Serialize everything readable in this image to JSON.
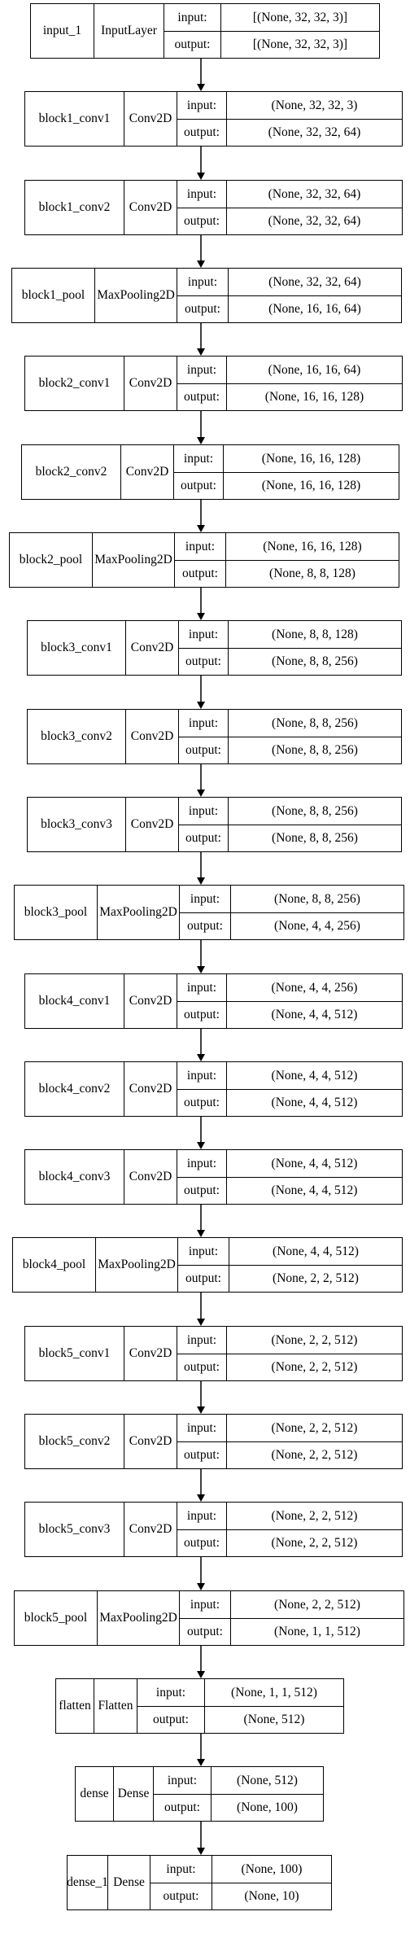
{
  "layers": [
    {
      "name": "input_1",
      "type": "InputLayer",
      "input_label": "input:",
      "output_label": "output:",
      "input": "[(None, 32, 32, 3)]",
      "output": "[(None, 32, 32, 3)]"
    },
    {
      "name": "block1_conv1",
      "type": "Conv2D",
      "input_label": "input:",
      "output_label": "output:",
      "input": "(None, 32, 32, 3)",
      "output": "(None, 32, 32, 64)"
    },
    {
      "name": "block1_conv2",
      "type": "Conv2D",
      "input_label": "input:",
      "output_label": "output:",
      "input": "(None, 32, 32, 64)",
      "output": "(None, 32, 32, 64)"
    },
    {
      "name": "block1_pool",
      "type": "MaxPooling2D",
      "input_label": "input:",
      "output_label": "output:",
      "input": "(None, 32, 32, 64)",
      "output": "(None, 16, 16, 64)"
    },
    {
      "name": "block2_conv1",
      "type": "Conv2D",
      "input_label": "input:",
      "output_label": "output:",
      "input": "(None, 16, 16, 64)",
      "output": "(None, 16, 16, 128)"
    },
    {
      "name": "block2_conv2",
      "type": "Conv2D",
      "input_label": "input:",
      "output_label": "output:",
      "input": "(None, 16, 16, 128)",
      "output": "(None, 16, 16, 128)"
    },
    {
      "name": "block2_pool",
      "type": "MaxPooling2D",
      "input_label": "input:",
      "output_label": "output:",
      "input": "(None, 16, 16, 128)",
      "output": "(None, 8, 8, 128)"
    },
    {
      "name": "block3_conv1",
      "type": "Conv2D",
      "input_label": "input:",
      "output_label": "output:",
      "input": "(None, 8, 8, 128)",
      "output": "(None, 8, 8, 256)"
    },
    {
      "name": "block3_conv2",
      "type": "Conv2D",
      "input_label": "input:",
      "output_label": "output:",
      "input": "(None, 8, 8, 256)",
      "output": "(None, 8, 8, 256)"
    },
    {
      "name": "block3_conv3",
      "type": "Conv2D",
      "input_label": "input:",
      "output_label": "output:",
      "input": "(None, 8, 8, 256)",
      "output": "(None, 8, 8, 256)"
    },
    {
      "name": "block3_pool",
      "type": "MaxPooling2D",
      "input_label": "input:",
      "output_label": "output:",
      "input": "(None, 8, 8, 256)",
      "output": "(None, 4, 4, 256)"
    },
    {
      "name": "block4_conv1",
      "type": "Conv2D",
      "input_label": "input:",
      "output_label": "output:",
      "input": "(None, 4, 4, 256)",
      "output": "(None, 4, 4, 512)"
    },
    {
      "name": "block4_conv2",
      "type": "Conv2D",
      "input_label": "input:",
      "output_label": "output:",
      "input": "(None, 4, 4, 512)",
      "output": "(None, 4, 4, 512)"
    },
    {
      "name": "block4_conv3",
      "type": "Conv2D",
      "input_label": "input:",
      "output_label": "output:",
      "input": "(None, 4, 4, 512)",
      "output": "(None, 4, 4, 512)"
    },
    {
      "name": "block4_pool",
      "type": "MaxPooling2D",
      "input_label": "input:",
      "output_label": "output:",
      "input": "(None, 4, 4, 512)",
      "output": "(None, 2, 2, 512)"
    },
    {
      "name": "block5_conv1",
      "type": "Conv2D",
      "input_label": "input:",
      "output_label": "output:",
      "input": "(None, 2, 2, 512)",
      "output": "(None, 2, 2, 512)"
    },
    {
      "name": "block5_conv2",
      "type": "Conv2D",
      "input_label": "input:",
      "output_label": "output:",
      "input": "(None, 2, 2, 512)",
      "output": "(None, 2, 2, 512)"
    },
    {
      "name": "block5_conv3",
      "type": "Conv2D",
      "input_label": "input:",
      "output_label": "output:",
      "input": "(None, 2, 2, 512)",
      "output": "(None, 2, 2, 512)"
    },
    {
      "name": "block5_pool",
      "type": "MaxPooling2D",
      "input_label": "input:",
      "output_label": "output:",
      "input": "(None, 2, 2, 512)",
      "output": "(None, 1, 1, 512)"
    },
    {
      "name": "flatten",
      "type": "Flatten",
      "input_label": "input:",
      "output_label": "output:",
      "input": "(None, 1, 1, 512)",
      "output": "(None, 512)"
    },
    {
      "name": "dense",
      "type": "Dense",
      "input_label": "input:",
      "output_label": "output:",
      "input": "(None, 512)",
      "output": "(None, 100)"
    },
    {
      "name": "dense_1",
      "type": "Dense",
      "input_label": "input:",
      "output_label": "output:",
      "input": "(None, 100)",
      "output": "(None, 10)"
    }
  ]
}
